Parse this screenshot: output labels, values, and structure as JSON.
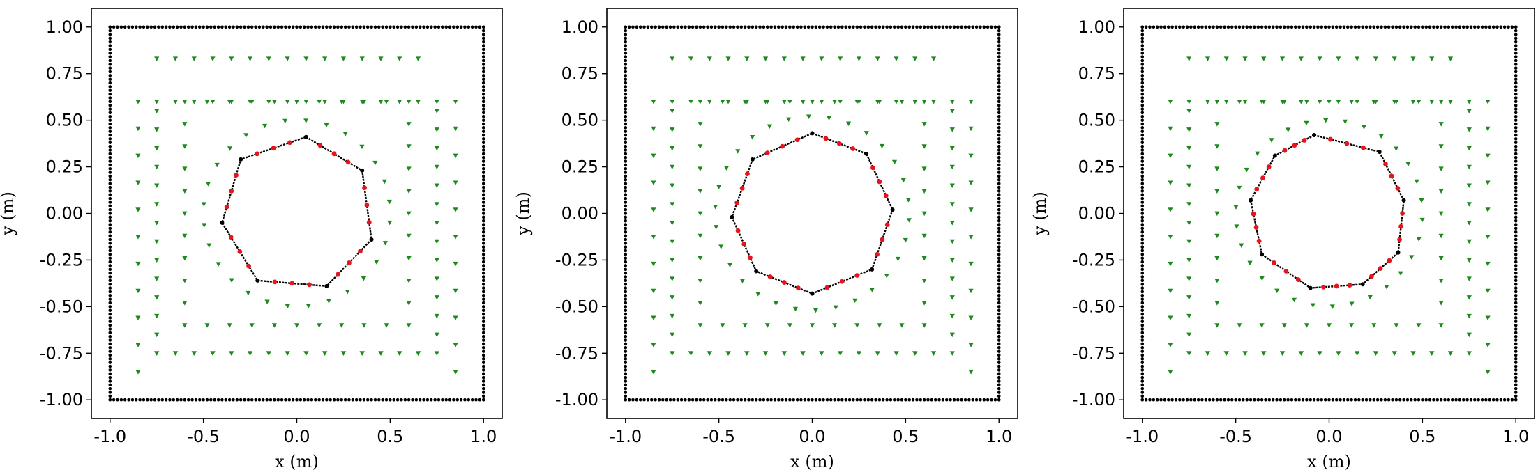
{
  "chart_data": [
    {
      "type": "scatter",
      "title": "",
      "xlabel": "x (m)",
      "ylabel": "y (m)",
      "xlim": [
        -1.1,
        1.1
      ],
      "ylim": [
        -1.1,
        1.1
      ],
      "xticks": [
        "-1.0",
        "-0.5",
        "0.0",
        "0.5",
        "1.0"
      ],
      "yticks": [
        "-1.00",
        "-0.75",
        "-0.50",
        "-0.25",
        "0.00",
        "0.25",
        "0.50",
        "0.75",
        "1.00"
      ],
      "grid": false,
      "boundary_square": {
        "half_width": 1.0,
        "points_per_side": 100,
        "color": "#000000"
      },
      "polygon": {
        "sides": 7,
        "vertices": [
          [
            0.05,
            0.41
          ],
          [
            0.35,
            0.23
          ],
          [
            0.4,
            -0.14
          ],
          [
            0.16,
            -0.39
          ],
          [
            -0.21,
            -0.36
          ],
          [
            -0.4,
            -0.05
          ],
          [
            -0.3,
            0.29
          ]
        ],
        "line_color": "#000000",
        "marker_color": "#e8141b",
        "markers_per_side": 3
      },
      "sensors": {
        "color": "#1e8a1e",
        "rings": [
          {
            "type": "circle",
            "cx": 0.0,
            "cy": 0.0,
            "r": 0.5,
            "count": 28
          },
          {
            "type": "rect",
            "x0": -0.6,
            "x1": 0.6,
            "y0": -0.6,
            "y1": 0.6,
            "step": 0.12
          },
          {
            "type": "rect",
            "x0": -0.75,
            "x1": 0.75,
            "y0": -0.75,
            "y1": 0.6,
            "step": 0.1
          },
          {
            "type": "hline",
            "y": 0.83,
            "x0": -0.75,
            "x1": 0.7,
            "step": 0.1
          },
          {
            "type": "hline",
            "y": -0.75,
            "x0": -0.75,
            "x1": 0.7,
            "step": 0.1
          },
          {
            "type": "vline",
            "x": -0.85,
            "y0": -0.85,
            "y1": 0.73,
            "step": 0.145
          },
          {
            "type": "vline",
            "x": 0.85,
            "y0": -0.85,
            "y1": 0.73,
            "step": 0.145
          }
        ]
      }
    },
    {
      "type": "scatter",
      "title": "",
      "xlabel": "x (m)",
      "ylabel": "y (m)",
      "xlim": [
        -1.1,
        1.1
      ],
      "ylim": [
        -1.1,
        1.1
      ],
      "xticks": [
        "-1.0",
        "-0.5",
        "0.0",
        "0.5",
        "1.0"
      ],
      "yticks": [
        "-1.00",
        "-0.75",
        "-0.50",
        "-0.25",
        "0.00",
        "0.25",
        "0.50",
        "0.75",
        "1.00"
      ],
      "grid": false,
      "boundary_square": {
        "half_width": 1.0,
        "points_per_side": 100,
        "color": "#000000"
      },
      "polygon": {
        "sides": 8,
        "vertices": [
          [
            0.0,
            0.43
          ],
          [
            0.29,
            0.32
          ],
          [
            0.43,
            0.02
          ],
          [
            0.32,
            -0.3
          ],
          [
            0.0,
            -0.43
          ],
          [
            -0.3,
            -0.31
          ],
          [
            -0.43,
            -0.02
          ],
          [
            -0.32,
            0.29
          ]
        ],
        "line_color": "#000000",
        "marker_color": "#e8141b",
        "markers_per_side": 3
      },
      "sensors": {
        "color": "#1e8a1e",
        "rings": [
          {
            "type": "circle",
            "cx": 0.0,
            "cy": 0.0,
            "r": 0.52,
            "count": 30
          },
          {
            "type": "rect",
            "x0": -0.6,
            "x1": 0.6,
            "y0": -0.6,
            "y1": 0.6,
            "step": 0.12
          },
          {
            "type": "rect",
            "x0": -0.75,
            "x1": 0.75,
            "y0": -0.75,
            "y1": 0.6,
            "step": 0.1
          },
          {
            "type": "hline",
            "y": 0.83,
            "x0": -0.75,
            "x1": 0.7,
            "step": 0.1
          },
          {
            "type": "hline",
            "y": -0.75,
            "x0": -0.75,
            "x1": 0.7,
            "step": 0.1
          },
          {
            "type": "vline",
            "x": -0.85,
            "y0": -0.85,
            "y1": 0.73,
            "step": 0.145
          },
          {
            "type": "vline",
            "x": 0.85,
            "y0": -0.85,
            "y1": 0.73,
            "step": 0.145
          }
        ]
      }
    },
    {
      "type": "scatter",
      "title": "",
      "xlabel": "x (m)",
      "ylabel": "y (m)",
      "xlim": [
        -1.1,
        1.1
      ],
      "ylim": [
        -1.1,
        1.1
      ],
      "xticks": [
        "-1.0",
        "-0.5",
        "0.0",
        "0.5",
        "1.0"
      ],
      "yticks": [
        "-1.00",
        "-0.75",
        "-0.50",
        "-0.25",
        "0.00",
        "0.25",
        "0.50",
        "0.75",
        "1.00"
      ],
      "grid": false,
      "boundary_square": {
        "half_width": 1.0,
        "points_per_side": 100,
        "color": "#000000"
      },
      "polygon": {
        "sides": 9,
        "vertices": [
          [
            -0.08,
            0.42
          ],
          [
            0.27,
            0.33
          ],
          [
            0.4,
            0.07
          ],
          [
            0.37,
            -0.21
          ],
          [
            0.18,
            -0.38
          ],
          [
            -0.1,
            -0.4
          ],
          [
            -0.36,
            -0.22
          ],
          [
            -0.42,
            0.07
          ],
          [
            -0.29,
            0.31
          ]
        ],
        "line_color": "#000000",
        "marker_color": "#e8141b",
        "markers_per_side": 3
      },
      "sensors": {
        "color": "#1e8a1e",
        "rings": [
          {
            "type": "circle",
            "cx": 0.0,
            "cy": 0.0,
            "r": 0.5,
            "count": 30
          },
          {
            "type": "rect",
            "x0": -0.6,
            "x1": 0.6,
            "y0": -0.6,
            "y1": 0.6,
            "step": 0.12
          },
          {
            "type": "rect",
            "x0": -0.75,
            "x1": 0.75,
            "y0": -0.75,
            "y1": 0.6,
            "step": 0.1
          },
          {
            "type": "hline",
            "y": 0.83,
            "x0": -0.75,
            "x1": 0.7,
            "step": 0.1
          },
          {
            "type": "hline",
            "y": -0.75,
            "x0": -0.75,
            "x1": 0.7,
            "step": 0.1
          },
          {
            "type": "vline",
            "x": -0.85,
            "y0": -0.85,
            "y1": 0.73,
            "step": 0.145
          },
          {
            "type": "vline",
            "x": 0.85,
            "y0": -0.85,
            "y1": 0.73,
            "step": 0.145
          }
        ]
      }
    }
  ]
}
